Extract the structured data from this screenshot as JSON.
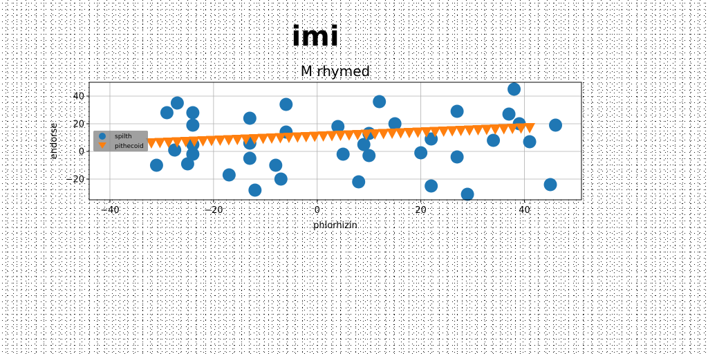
{
  "chart_data": {
    "type": "scatter",
    "suptitle": "imi",
    "title": "M rhymed",
    "xlabel": "phlorhizin",
    "ylabel": "endorse",
    "xlim": [
      -44,
      51
    ],
    "ylim": [
      -35,
      50
    ],
    "xticks": [
      -40,
      -20,
      0,
      20,
      40
    ],
    "yticks": [
      -20,
      0,
      20,
      40
    ],
    "grid": true,
    "legend_position": "center-left",
    "series": [
      {
        "name": "spilth",
        "marker": "circle",
        "color": "#1f77b4",
        "points": [
          [
            -31,
            -10
          ],
          [
            -29,
            28
          ],
          [
            -27.5,
            1
          ],
          [
            -27,
            35
          ],
          [
            -25,
            -9
          ],
          [
            -24,
            28
          ],
          [
            -24,
            19
          ],
          [
            -24,
            -2
          ],
          [
            -24,
            5
          ],
          [
            -17,
            -17
          ],
          [
            -13,
            24
          ],
          [
            -13,
            6
          ],
          [
            -13,
            -5
          ],
          [
            -12,
            -28
          ],
          [
            -8,
            -10
          ],
          [
            -7,
            -20
          ],
          [
            -6,
            34
          ],
          [
            -6,
            14
          ],
          [
            4,
            18
          ],
          [
            5,
            -2
          ],
          [
            8,
            -22
          ],
          [
            9,
            5
          ],
          [
            10,
            -3
          ],
          [
            10,
            13
          ],
          [
            12,
            36
          ],
          [
            15,
            20
          ],
          [
            20,
            -1
          ],
          [
            22,
            -25
          ],
          [
            22,
            9
          ],
          [
            27,
            29
          ],
          [
            27,
            -4
          ],
          [
            29,
            -31
          ],
          [
            34,
            8
          ],
          [
            37,
            27
          ],
          [
            38,
            45
          ],
          [
            39,
            20
          ],
          [
            41,
            7
          ],
          [
            45,
            -24
          ],
          [
            46,
            19
          ]
        ]
      },
      {
        "name": "pithecoid",
        "marker": "triangle-down",
        "color": "#ff7f0e",
        "x_start": -32,
        "x_end": 41,
        "count": 45,
        "y_start": 6,
        "y_end": 17
      }
    ]
  }
}
